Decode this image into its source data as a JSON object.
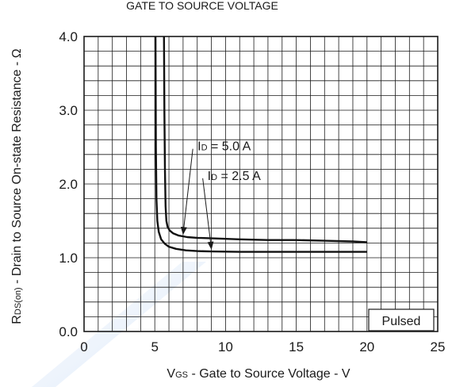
{
  "chart_data": {
    "type": "line",
    "title": "GATE TO SOURCE VOLTAGE",
    "xlabel": {
      "main": "V",
      "sub": "GS",
      "rest": " - Gate to Source Voltage - V"
    },
    "ylabel": {
      "main": "R",
      "sub": "DS(on)",
      "rest": " - Drain to Source On-state Resistance - Ω"
    },
    "xlim": [
      0,
      25
    ],
    "ylim": [
      0,
      4
    ],
    "x_ticks": [
      0,
      5,
      10,
      15,
      20,
      25
    ],
    "x_tick_labels": [
      "0",
      "5",
      "10",
      "15",
      "20",
      "25"
    ],
    "y_ticks": [
      0,
      1,
      2,
      3,
      4
    ],
    "y_tick_labels": [
      "0.0",
      "1.0",
      "2.0",
      "3.0",
      "4.0"
    ],
    "minor_x_step": 1,
    "minor_y_step": 0.2,
    "grid": true,
    "legend_box": "Pulsed",
    "series": [
      {
        "name": "ID = 5.0 A",
        "label": {
          "main": "I",
          "sub": "D",
          "rest": " = 5.0 A"
        },
        "x": [
          5.65,
          5.68,
          5.72,
          5.76,
          5.82,
          5.9,
          6.05,
          6.3,
          6.7,
          7.3,
          8.0,
          9.5,
          11,
          13,
          15,
          17,
          19,
          20
        ],
        "y": [
          4.0,
          3.0,
          2.2,
          1.7,
          1.5,
          1.42,
          1.37,
          1.33,
          1.3,
          1.28,
          1.27,
          1.26,
          1.25,
          1.24,
          1.24,
          1.23,
          1.22,
          1.21
        ]
      },
      {
        "name": "ID = 2.5 A",
        "label": {
          "main": "I",
          "sub": "D",
          "rest": " = 2.5 A"
        },
        "x": [
          5.05,
          5.08,
          5.12,
          5.18,
          5.28,
          5.45,
          5.7,
          6.0,
          6.5,
          7.2,
          8.0,
          9.0,
          11,
          13,
          15,
          17,
          19,
          20
        ],
        "y": [
          4.0,
          2.5,
          1.8,
          1.5,
          1.35,
          1.25,
          1.19,
          1.15,
          1.12,
          1.1,
          1.09,
          1.085,
          1.08,
          1.08,
          1.08,
          1.08,
          1.08,
          1.08
        ]
      }
    ],
    "annotations": [
      {
        "series": 0,
        "text_at": [
          7.8,
          2.52
        ],
        "arrow_to": [
          7.0,
          1.32
        ]
      },
      {
        "series": 1,
        "text_at": [
          8.5,
          2.12
        ],
        "arrow_to": [
          9.0,
          1.12
        ]
      }
    ]
  }
}
